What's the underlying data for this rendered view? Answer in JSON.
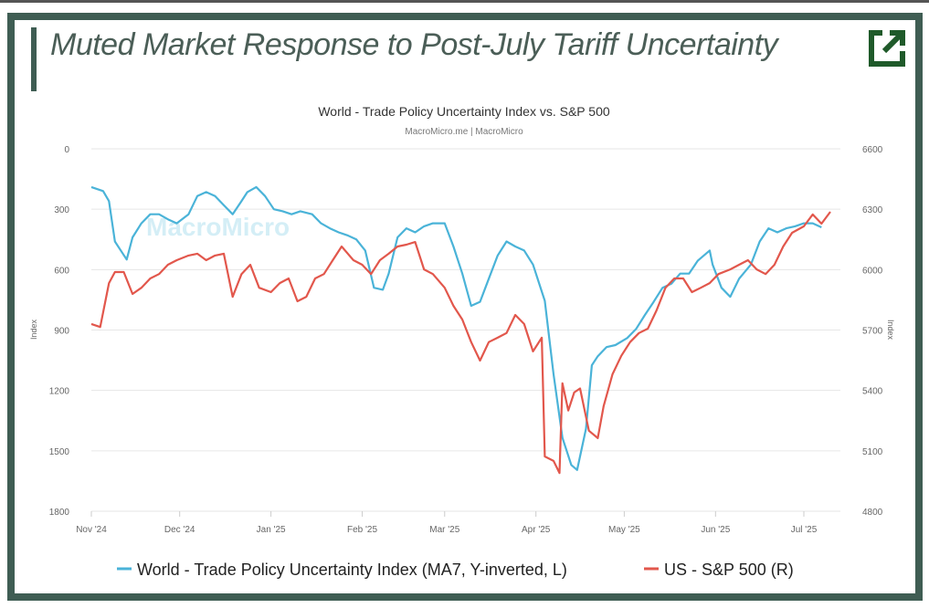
{
  "header": {
    "title": "Muted Market Response to Post-July Tariff Uncertainty",
    "external_link_icon": "external-link-icon"
  },
  "colors": {
    "frame": "#3f5d53",
    "blue": "#4ab3d8",
    "red": "#e2574c"
  },
  "chart_data": {
    "type": "line",
    "title": "World - Trade Policy Uncertainty Index vs. S&P 500",
    "subtitle": "MacroMicro.me | MacroMicro",
    "watermark": "MacroMicro",
    "ylabel_left": "Index",
    "ylabel_right": "Index",
    "y_left": {
      "range": [
        0,
        1800
      ],
      "inverted": true,
      "ticks": [
        "0",
        "300",
        "600",
        "900",
        "1200",
        "1500",
        "1800"
      ]
    },
    "y_right": {
      "range": [
        4800,
        6600
      ],
      "ticks": [
        "6600",
        "6300",
        "6000",
        "5700",
        "5400",
        "5100",
        "4800"
      ]
    },
    "x_unit": "days since 2024-11-01",
    "x_range": [
      0,
      255
    ],
    "x_ticks": [
      {
        "label": "Nov '24",
        "day": 0
      },
      {
        "label": "Dec '24",
        "day": 30
      },
      {
        "label": "Jan '25",
        "day": 61
      },
      {
        "label": "Feb '25",
        "day": 92
      },
      {
        "label": "Mar '25",
        "day": 120
      },
      {
        "label": "Apr '25",
        "day": 151
      },
      {
        "label": "May '25",
        "day": 181
      },
      {
        "label": "Jun '25",
        "day": 212
      },
      {
        "label": "Jul '25",
        "day": 242
      }
    ],
    "grid": true,
    "legend": "bottom-center",
    "series": [
      {
        "name": "World - Trade Policy Uncertainty Index (MA7, Y-inverted, L)",
        "axis": "left",
        "color": "#4ab3d8",
        "points": [
          [
            0,
            190
          ],
          [
            4,
            210
          ],
          [
            6,
            260
          ],
          [
            8,
            460
          ],
          [
            12,
            550
          ],
          [
            14,
            440
          ],
          [
            17,
            370
          ],
          [
            20,
            325
          ],
          [
            23,
            325
          ],
          [
            26,
            350
          ],
          [
            29,
            370
          ],
          [
            33,
            325
          ],
          [
            36,
            235
          ],
          [
            39,
            215
          ],
          [
            42,
            235
          ],
          [
            45,
            280
          ],
          [
            48,
            325
          ],
          [
            51,
            260
          ],
          [
            53,
            215
          ],
          [
            56,
            190
          ],
          [
            59,
            235
          ],
          [
            62,
            300
          ],
          [
            65,
            310
          ],
          [
            68,
            325
          ],
          [
            71,
            310
          ],
          [
            75,
            325
          ],
          [
            78,
            370
          ],
          [
            81,
            395
          ],
          [
            84,
            415
          ],
          [
            87,
            430
          ],
          [
            90,
            450
          ],
          [
            93,
            505
          ],
          [
            96,
            690
          ],
          [
            99,
            700
          ],
          [
            101,
            620
          ],
          [
            104,
            440
          ],
          [
            107,
            395
          ],
          [
            110,
            415
          ],
          [
            113,
            385
          ],
          [
            116,
            370
          ],
          [
            120,
            370
          ],
          [
            123,
            485
          ],
          [
            126,
            620
          ],
          [
            129,
            780
          ],
          [
            132,
            760
          ],
          [
            135,
            645
          ],
          [
            138,
            530
          ],
          [
            141,
            460
          ],
          [
            144,
            485
          ],
          [
            147,
            505
          ],
          [
            150,
            575
          ],
          [
            154,
            755
          ],
          [
            157,
            1120
          ],
          [
            160,
            1435
          ],
          [
            163,
            1570
          ],
          [
            165,
            1595
          ],
          [
            168,
            1390
          ],
          [
            170,
            1075
          ],
          [
            172,
            1030
          ],
          [
            175,
            985
          ],
          [
            178,
            975
          ],
          [
            182,
            940
          ],
          [
            185,
            895
          ],
          [
            188,
            825
          ],
          [
            191,
            760
          ],
          [
            194,
            690
          ],
          [
            197,
            670
          ],
          [
            200,
            620
          ],
          [
            203,
            620
          ],
          [
            206,
            555
          ],
          [
            210,
            505
          ],
          [
            211,
            575
          ],
          [
            214,
            690
          ],
          [
            217,
            735
          ],
          [
            220,
            645
          ],
          [
            224,
            575
          ],
          [
            227,
            460
          ],
          [
            230,
            395
          ],
          [
            233,
            415
          ],
          [
            236,
            395
          ],
          [
            239,
            385
          ],
          [
            242,
            370
          ],
          [
            245,
            370
          ],
          [
            248,
            390
          ]
        ]
      },
      {
        "name": "US - S&P 500 (R)",
        "axis": "right",
        "color": "#e2574c",
        "points": [
          [
            0,
            5730
          ],
          [
            3,
            5715
          ],
          [
            6,
            5933
          ],
          [
            8,
            5988
          ],
          [
            11,
            5988
          ],
          [
            14,
            5879
          ],
          [
            17,
            5910
          ],
          [
            20,
            5956
          ],
          [
            23,
            5978
          ],
          [
            26,
            6024
          ],
          [
            29,
            6047
          ],
          [
            33,
            6070
          ],
          [
            36,
            6079
          ],
          [
            39,
            6047
          ],
          [
            42,
            6070
          ],
          [
            45,
            6079
          ],
          [
            48,
            5865
          ],
          [
            51,
            5978
          ],
          [
            54,
            6024
          ],
          [
            57,
            5910
          ],
          [
            61,
            5888
          ],
          [
            64,
            5933
          ],
          [
            67,
            5956
          ],
          [
            70,
            5843
          ],
          [
            73,
            5865
          ],
          [
            76,
            5956
          ],
          [
            79,
            5978
          ],
          [
            82,
            6047
          ],
          [
            85,
            6115
          ],
          [
            89,
            6047
          ],
          [
            92,
            6024
          ],
          [
            95,
            5978
          ],
          [
            98,
            6047
          ],
          [
            101,
            6079
          ],
          [
            104,
            6115
          ],
          [
            107,
            6124
          ],
          [
            110,
            6137
          ],
          [
            113,
            6001
          ],
          [
            116,
            5978
          ],
          [
            120,
            5910
          ],
          [
            123,
            5820
          ],
          [
            126,
            5752
          ],
          [
            129,
            5640
          ],
          [
            132,
            5548
          ],
          [
            135,
            5640
          ],
          [
            138,
            5662
          ],
          [
            141,
            5685
          ],
          [
            144,
            5775
          ],
          [
            147,
            5730
          ],
          [
            150,
            5594
          ],
          [
            153,
            5662
          ],
          [
            154,
            5072
          ],
          [
            157,
            5050
          ],
          [
            159,
            4990
          ],
          [
            160,
            5435
          ],
          [
            162,
            5300
          ],
          [
            164,
            5390
          ],
          [
            166,
            5410
          ],
          [
            169,
            5200
          ],
          [
            172,
            5163
          ],
          [
            174,
            5322
          ],
          [
            177,
            5480
          ],
          [
            180,
            5572
          ],
          [
            183,
            5640
          ],
          [
            186,
            5685
          ],
          [
            189,
            5707
          ],
          [
            192,
            5798
          ],
          [
            195,
            5910
          ],
          [
            198,
            5956
          ],
          [
            201,
            5956
          ],
          [
            204,
            5888
          ],
          [
            207,
            5910
          ],
          [
            210,
            5933
          ],
          [
            213,
            5978
          ],
          [
            217,
            6001
          ],
          [
            220,
            6024
          ],
          [
            223,
            6047
          ],
          [
            226,
            6001
          ],
          [
            229,
            5978
          ],
          [
            232,
            6024
          ],
          [
            235,
            6115
          ],
          [
            238,
            6183
          ],
          [
            242,
            6215
          ],
          [
            245,
            6274
          ],
          [
            248,
            6228
          ],
          [
            251,
            6287
          ]
        ]
      }
    ]
  }
}
